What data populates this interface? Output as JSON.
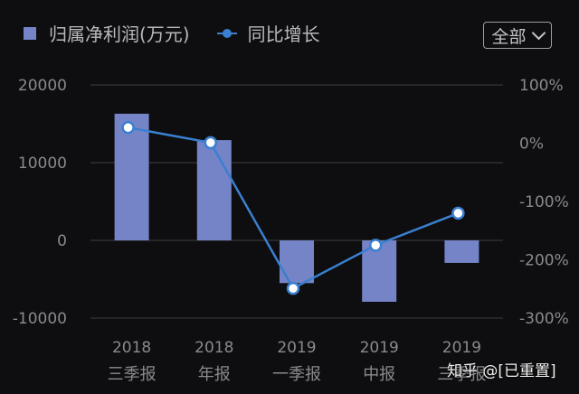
{
  "legend": {
    "bar_label": "归属净利润(万元)",
    "line_label": "同比增长"
  },
  "filter": {
    "label": "全部"
  },
  "watermark": "知乎 @[已重置]",
  "colors": {
    "background": "#0e0e10",
    "bar": "#7484c7",
    "line": "#3a7fd0",
    "grid": "#2e2e31",
    "text": "#8a8a8e"
  },
  "chart_data": {
    "type": "bar",
    "categories": [
      {
        "year": "2018",
        "period": "三季报"
      },
      {
        "year": "2018",
        "period": "年报"
      },
      {
        "year": "2019",
        "period": "一季报"
      },
      {
        "year": "2019",
        "period": "中报"
      },
      {
        "year": "2019",
        "period": "三季报"
      }
    ],
    "series": [
      {
        "name": "归属净利润(万元)",
        "type": "bar",
        "axis": "left",
        "values": [
          16300,
          12900,
          -5500,
          -7900,
          -2900
        ]
      },
      {
        "name": "同比增长",
        "type": "line",
        "axis": "right",
        "unit": "%",
        "values": [
          27,
          1,
          -249,
          -175,
          -120
        ]
      }
    ],
    "y_left": {
      "ylim": [
        -10000,
        20000
      ],
      "ticks": [
        -10000,
        0,
        10000,
        20000
      ],
      "tick_labels": [
        "-10000",
        "0",
        "10000",
        "20000"
      ]
    },
    "y_right": {
      "ylim": [
        -300,
        100
      ],
      "ticks": [
        -300,
        -200,
        -100,
        0,
        100
      ],
      "tick_labels": [
        "-300%",
        "-200%",
        "-100%",
        "0%",
        "100%"
      ]
    },
    "grid": true,
    "legend_position": "top-left"
  }
}
